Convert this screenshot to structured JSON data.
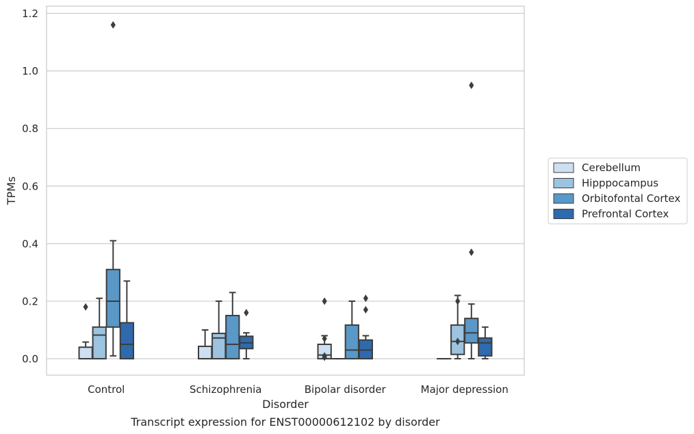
{
  "chart_data": {
    "type": "box",
    "caption": "Transcript expression for ENST00000612102 by disorder",
    "xlabel": "Disorder",
    "ylabel": "TPMs",
    "ylim": [
      -0.057,
      1.225
    ],
    "yticks": [
      0.0,
      0.2,
      0.4,
      0.6,
      0.8,
      1.0,
      1.2
    ],
    "ytick_labels": [
      "0.0",
      "0.2",
      "0.4",
      "0.6",
      "0.8",
      "1.0",
      "1.2"
    ],
    "grid": "horizontal",
    "legend_position": "right",
    "categories": [
      "Control",
      "Schizophrenia",
      "Bipolar disorder",
      "Major depression"
    ],
    "series": [
      {
        "name": "Cerebellum",
        "color": "#cddff1",
        "boxes": [
          {
            "q1": 0.0,
            "median": 0.0,
            "q3": 0.04,
            "whisker_low": 0.0,
            "whisker_high": 0.058,
            "outliers": [
              0.18
            ]
          },
          {
            "q1": 0.0,
            "median": 0.0,
            "q3": 0.043,
            "whisker_low": 0.0,
            "whisker_high": 0.1,
            "outliers": []
          },
          {
            "q1": 0.0,
            "median": 0.013,
            "q3": 0.05,
            "whisker_low": 0.0,
            "whisker_high": 0.08,
            "outliers": [
              0.2,
              0.07,
              0.01,
              0.005
            ]
          },
          {
            "q1": 0.0,
            "median": 0.0,
            "q3": 0.0,
            "whisker_low": 0.0,
            "whisker_high": 0.0,
            "outliers": []
          }
        ]
      },
      {
        "name": "Hipppocampus",
        "color": "#9cc3df",
        "boxes": [
          {
            "q1": 0.0,
            "median": 0.082,
            "q3": 0.11,
            "whisker_low": 0.0,
            "whisker_high": 0.21,
            "outliers": []
          },
          {
            "q1": 0.0,
            "median": 0.072,
            "q3": 0.088,
            "whisker_low": 0.0,
            "whisker_high": 0.2,
            "outliers": []
          },
          {
            "q1": 0.0,
            "median": 0.0,
            "q3": 0.0,
            "whisker_low": 0.0,
            "whisker_high": 0.0,
            "outliers": []
          },
          {
            "q1": 0.015,
            "median": 0.06,
            "q3": 0.117,
            "whisker_low": 0.0,
            "whisker_high": 0.22,
            "outliers": [
              0.2,
              0.06
            ]
          }
        ]
      },
      {
        "name": "Orbitofontal Cortex",
        "color": "#5998c7",
        "boxes": [
          {
            "q1": 0.11,
            "median": 0.2,
            "q3": 0.31,
            "whisker_low": 0.01,
            "whisker_high": 0.41,
            "outliers": [
              1.16
            ]
          },
          {
            "q1": 0.0,
            "median": 0.05,
            "q3": 0.15,
            "whisker_low": 0.0,
            "whisker_high": 0.23,
            "outliers": []
          },
          {
            "q1": 0.0,
            "median": 0.03,
            "q3": 0.117,
            "whisker_low": 0.0,
            "whisker_high": 0.2,
            "outliers": []
          },
          {
            "q1": 0.055,
            "median": 0.09,
            "q3": 0.14,
            "whisker_low": 0.0,
            "whisker_high": 0.19,
            "outliers": [
              0.95,
              0.37
            ]
          }
        ]
      },
      {
        "name": "Prefrontal Cortex",
        "color": "#2e6aad",
        "boxes": [
          {
            "q1": 0.0,
            "median": 0.05,
            "q3": 0.125,
            "whisker_low": 0.0,
            "whisker_high": 0.27,
            "outliers": []
          },
          {
            "q1": 0.035,
            "median": 0.055,
            "q3": 0.078,
            "whisker_low": 0.0,
            "whisker_high": 0.09,
            "outliers": [
              0.16
            ]
          },
          {
            "q1": 0.0,
            "median": 0.03,
            "q3": 0.065,
            "whisker_low": 0.0,
            "whisker_high": 0.08,
            "outliers": [
              0.21,
              0.17
            ]
          },
          {
            "q1": 0.01,
            "median": 0.055,
            "q3": 0.072,
            "whisker_low": 0.0,
            "whisker_high": 0.11,
            "outliers": []
          }
        ]
      }
    ]
  }
}
